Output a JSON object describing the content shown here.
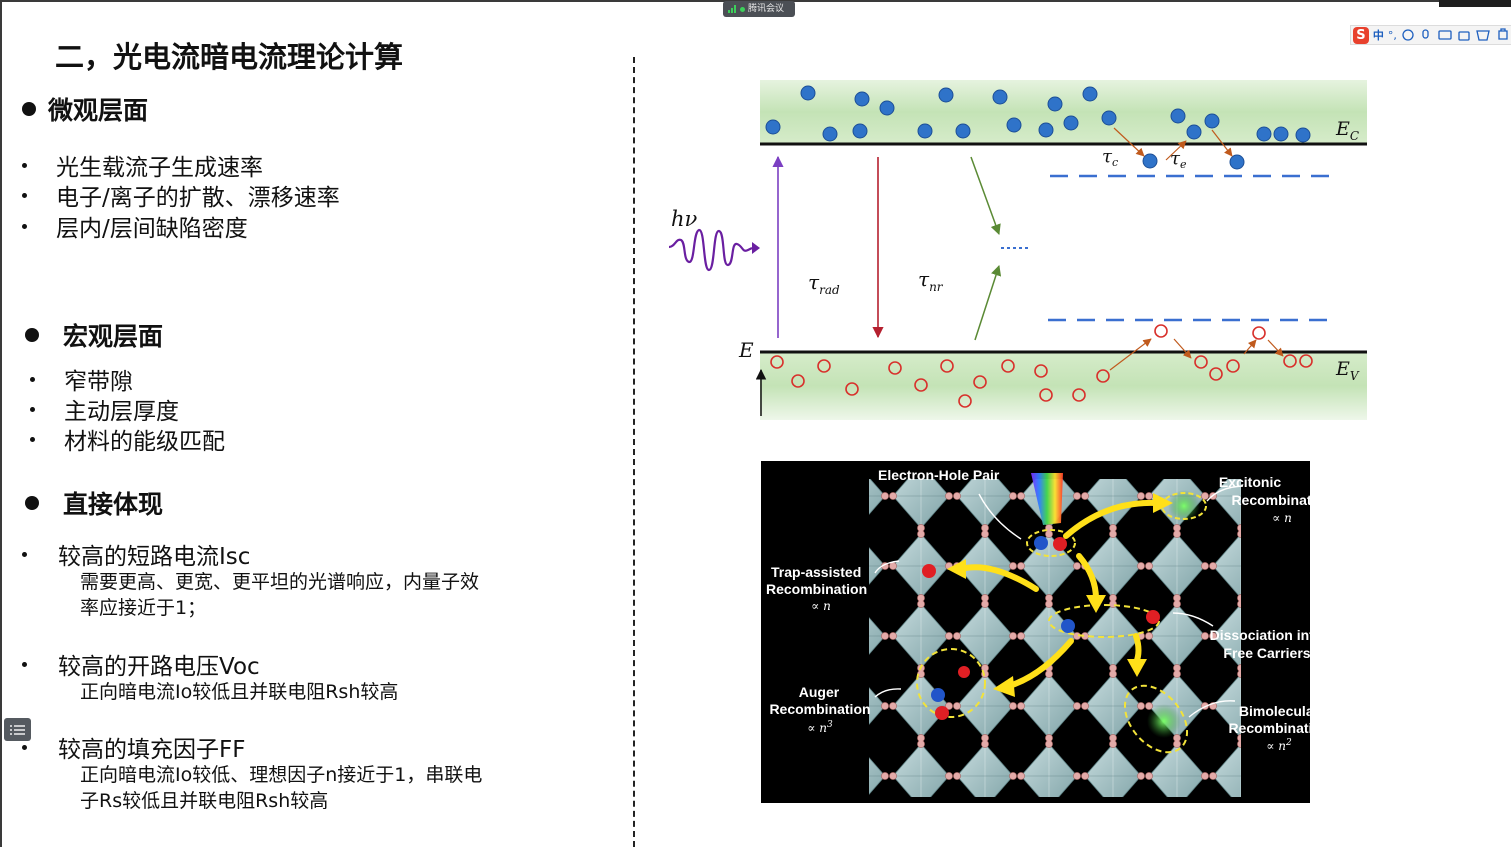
{
  "window": {
    "meeting_badge": "腾讯会议"
  },
  "ime_toolbar": {
    "logo": "S",
    "mode": "中",
    "punct": "°,"
  },
  "slide": {
    "title": "二，光电流暗电流理论计算",
    "sections": [
      {
        "heading": "微观层面",
        "items": [
          "光生载流子生成速率",
          "电子/离子的扩散、漂移速率",
          "层内/层间缺陷密度"
        ]
      },
      {
        "heading": "宏观层面",
        "items": [
          "窄带隙",
          "主动层厚度",
          "材料的能级匹配"
        ]
      },
      {
        "heading": "直接体现",
        "items": [
          {
            "label": "较高的短路电流Isc",
            "details": [
              "需要更高、更宽、更平坦的光谱响应，内量子效",
              "率应接近于1；"
            ]
          },
          {
            "label": "较高的开路电压Voc",
            "details": [
              "正向暗电流Io较低且并联电阻Rsh较高"
            ]
          },
          {
            "label": "较高的填充因子FF",
            "details": [
              "正向暗电流Io较低、理想因子n接近于1，串联电",
              "子Rs较低且并联电阻Rsh较高"
            ]
          }
        ]
      }
    ]
  },
  "band_diagram": {
    "hv": "hν",
    "E": "E",
    "Ec": "E",
    "Ec_sub": "C",
    "Ev": "E",
    "Ev_sub": "V",
    "tau": "τ",
    "tau_rad_sub": "rad",
    "tau_nr_sub": "nr",
    "tau_c_sub": "c",
    "tau_e_sub": "e",
    "colors": {
      "band_fill": "#cfe8c4",
      "electron": "#2f73c9",
      "hole": "#d8312c",
      "trap_line": "#3a6fd0"
    }
  },
  "crystal_figure": {
    "electron_hole_pair": "Electron-Hole Pair",
    "excitonic": "Excitonic",
    "excitonic_2": "Recombination",
    "excitonic_scale": "∝ n",
    "trap": "Trap-assisted",
    "trap_2": "Recombination",
    "trap_scale": "∝ n",
    "dissociation": "Dissociation into",
    "dissociation_2": "Free Carriers",
    "auger": "Auger",
    "auger_2": "Recombination",
    "auger_scale": "∝ n",
    "auger_exp": "3",
    "bimolecular": "Bimolecular",
    "bimolecular_2": "Recombination",
    "bimolecular_scale": "∝ n",
    "bimolecular_exp": "2"
  }
}
